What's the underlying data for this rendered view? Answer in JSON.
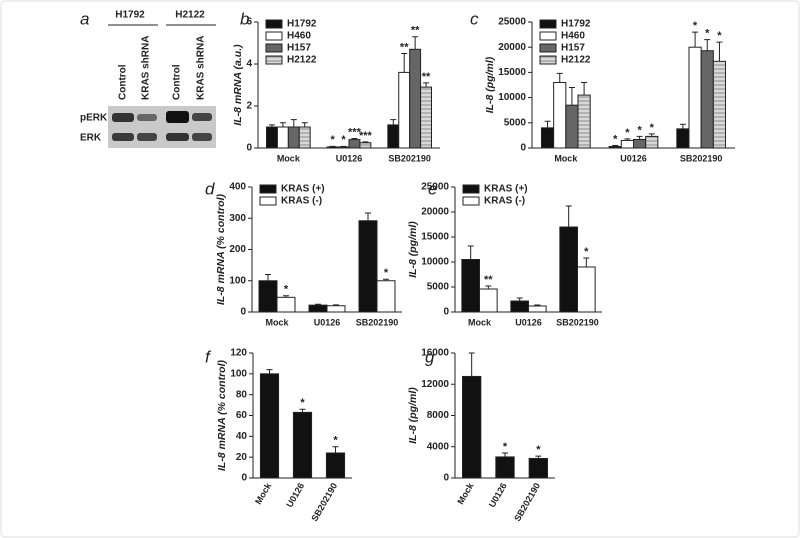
{
  "blot": {
    "panel": "a",
    "groups": [
      "H1792",
      "H2122"
    ],
    "lanes": [
      "Control",
      "KRAS shRNA",
      "Control",
      "KRAS shRNA"
    ],
    "rows": [
      "pERK",
      "ERK"
    ]
  },
  "chart_data": [
    {
      "panel": "b",
      "type": "bar",
      "ylabel": "IL-8 mRNA (a.u.)",
      "categories": [
        "Mock",
        "U0126",
        "SB202190"
      ],
      "series": [
        {
          "name": "H1792",
          "color": "#111111",
          "values": [
            1.0,
            0.05,
            1.1
          ],
          "errors": [
            0.1,
            0.03,
            0.25
          ],
          "labels": [
            null,
            "*",
            null
          ]
        },
        {
          "name": "H460",
          "color": "#ffffff",
          "values": [
            1.0,
            0.05,
            3.6
          ],
          "errors": [
            0.2,
            0.03,
            0.9
          ],
          "labels": [
            null,
            "*",
            "**"
          ]
        },
        {
          "name": "H157",
          "color": "#666666",
          "values": [
            1.0,
            0.4,
            4.7
          ],
          "errors": [
            0.35,
            0.05,
            0.6
          ],
          "labels": [
            null,
            "***",
            "**"
          ]
        },
        {
          "name": "H2122",
          "color": "#d0d0d0",
          "hatch": true,
          "values": [
            1.0,
            0.25,
            2.9
          ],
          "errors": [
            0.2,
            0.04,
            0.2
          ],
          "labels": [
            null,
            "***",
            "**"
          ]
        }
      ],
      "ylim": [
        0,
        6
      ],
      "yticks": [
        0,
        2,
        4,
        6
      ],
      "legend": "upper left"
    },
    {
      "panel": "c",
      "type": "bar",
      "ylabel": "IL-8 (pg/ml)",
      "categories": [
        "Mock",
        "U0126",
        "SB202190"
      ],
      "series": [
        {
          "name": "H1792",
          "color": "#111111",
          "values": [
            4000,
            300,
            3800
          ],
          "errors": [
            1300,
            200,
            900
          ],
          "labels": [
            null,
            "*",
            null
          ]
        },
        {
          "name": "H460",
          "color": "#ffffff",
          "values": [
            13000,
            1500,
            20000
          ],
          "errors": [
            1800,
            300,
            3000
          ],
          "labels": [
            null,
            "*",
            "*"
          ]
        },
        {
          "name": "H157",
          "color": "#666666",
          "values": [
            8500,
            1700,
            19300
          ],
          "errors": [
            3500,
            600,
            2200
          ],
          "labels": [
            null,
            "*",
            "*"
          ]
        },
        {
          "name": "H2122",
          "color": "#d0d0d0",
          "hatch": true,
          "values": [
            10500,
            2300,
            17200
          ],
          "errors": [
            2500,
            500,
            3800
          ],
          "labels": [
            null,
            "*",
            "*"
          ]
        }
      ],
      "ylim": [
        0,
        25000
      ],
      "yticks": [
        0,
        5000,
        10000,
        15000,
        20000,
        25000
      ],
      "legend": "upper left"
    },
    {
      "panel": "d",
      "type": "bar",
      "ylabel": "IL-8 mRNA (% control)",
      "categories": [
        "Mock",
        "U0126",
        "SB202190"
      ],
      "series": [
        {
          "name": "KRAS (+)",
          "color": "#111111",
          "values": [
            100,
            22,
            292
          ],
          "errors": [
            20,
            3,
            25
          ],
          "labels": [
            null,
            null,
            null
          ]
        },
        {
          "name": "KRAS (-)",
          "color": "#ffffff",
          "values": [
            47,
            20,
            100
          ],
          "errors": [
            5,
            3,
            5
          ],
          "labels": [
            "*",
            null,
            "*"
          ]
        }
      ],
      "ylim": [
        0,
        400
      ],
      "yticks": [
        0,
        100,
        200,
        300,
        400
      ],
      "legend": "upper left"
    },
    {
      "panel": "e",
      "type": "bar",
      "ylabel": "IL-8 (pg/ml)",
      "categories": [
        "Mock",
        "U0126",
        "SB202190"
      ],
      "series": [
        {
          "name": "KRAS (+)",
          "color": "#111111",
          "values": [
            10500,
            2200,
            17000
          ],
          "errors": [
            2700,
            600,
            4200
          ],
          "labels": [
            null,
            null,
            null
          ]
        },
        {
          "name": "KRAS (-)",
          "color": "#ffffff",
          "values": [
            4600,
            1200,
            9000
          ],
          "errors": [
            600,
            200,
            1800
          ],
          "labels": [
            "**",
            null,
            "*"
          ]
        }
      ],
      "ylim": [
        0,
        25000
      ],
      "yticks": [
        0,
        5000,
        10000,
        15000,
        20000,
        25000
      ],
      "legend": "upper left"
    },
    {
      "panel": "f",
      "type": "bar",
      "ylabel": "IL-8 mRNA (% control)",
      "categories": [
        "Mock",
        "U0126",
        "SB202190"
      ],
      "series": [
        {
          "color": "#111111",
          "values": [
            100,
            63,
            24
          ],
          "errors": [
            4,
            3,
            6
          ],
          "labels": [
            null,
            "*",
            "*"
          ]
        }
      ],
      "ylim": [
        0,
        120
      ],
      "yticks": [
        0,
        20,
        40,
        60,
        80,
        100,
        120
      ],
      "xtick_rotation": -60
    },
    {
      "panel": "g",
      "type": "bar",
      "ylabel": "IL-8 (pg/ml)",
      "categories": [
        "Mock",
        "U0126",
        "SB202190"
      ],
      "series": [
        {
          "color": "#111111",
          "values": [
            13000,
            2700,
            2500
          ],
          "errors": [
            3000,
            500,
            300
          ],
          "labels": [
            null,
            "*",
            "*"
          ]
        }
      ],
      "ylim": [
        0,
        16000
      ],
      "yticks": [
        0,
        4000,
        8000,
        12000,
        16000
      ],
      "xtick_rotation": -60
    }
  ]
}
